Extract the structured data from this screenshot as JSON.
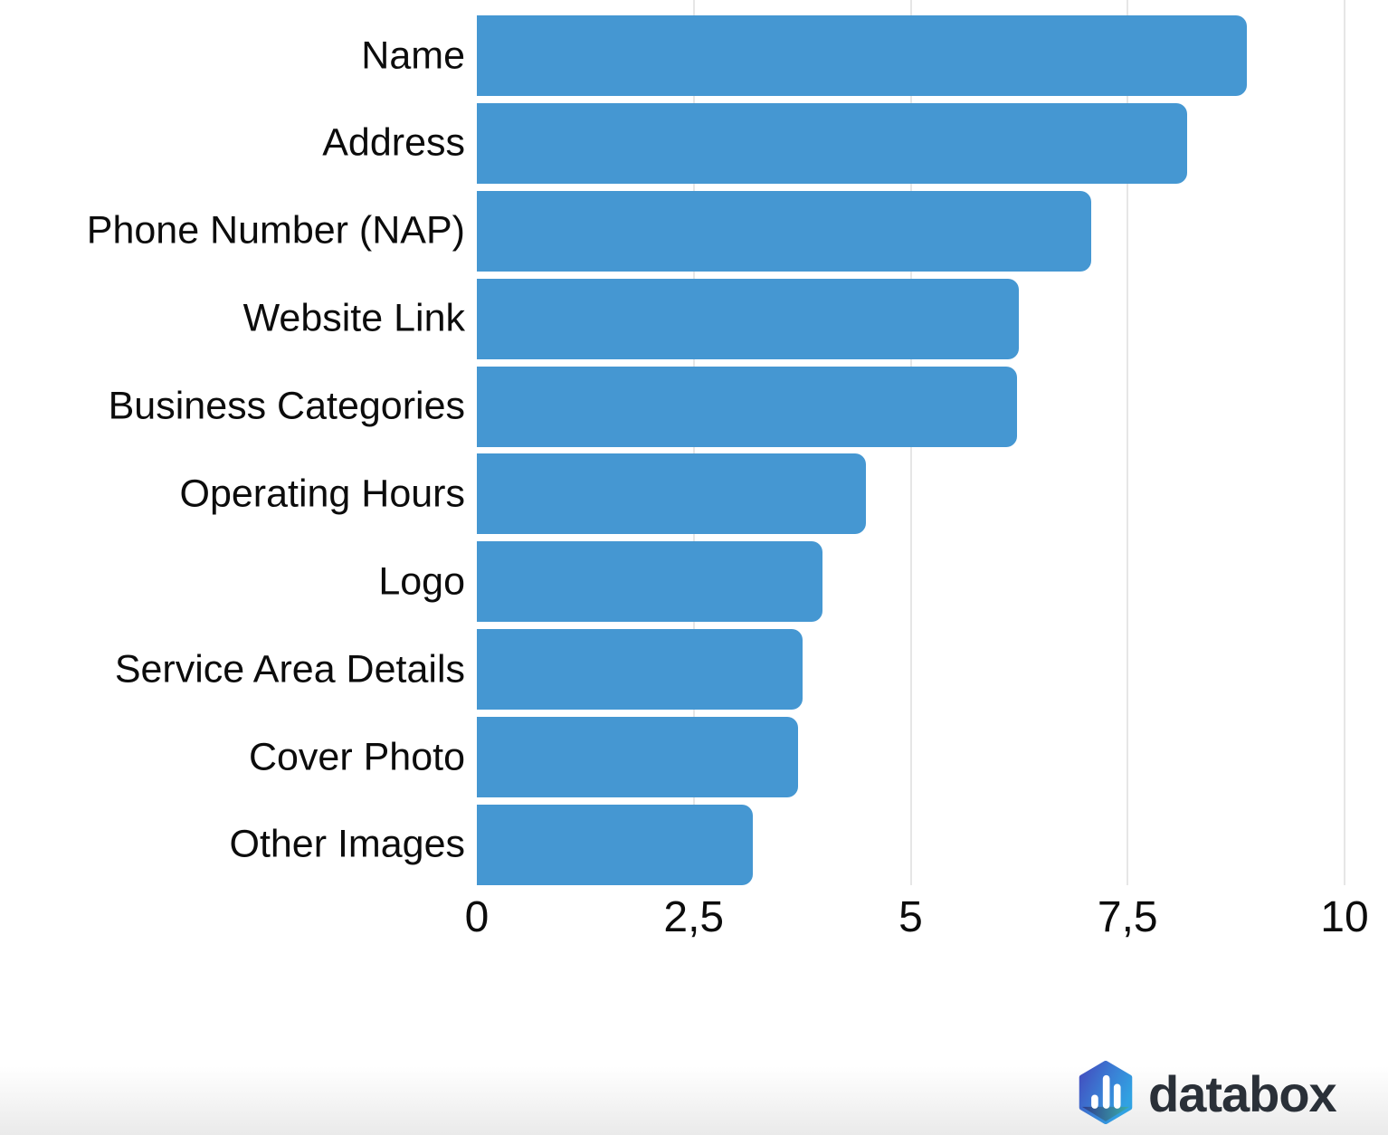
{
  "chart_data": {
    "type": "bar",
    "orientation": "horizontal",
    "title": "",
    "categories": [
      "Name",
      "Address",
      "Phone Number (NAP)",
      "Website Link",
      "Business Categories",
      "Operating Hours",
      "Logo",
      "Service Area Details",
      "Cover Photo",
      "Other Images"
    ],
    "values": [
      8.87,
      8.19,
      7.08,
      6.25,
      6.23,
      4.48,
      3.98,
      3.75,
      3.7,
      3.18
    ],
    "xlabel": "",
    "ylabel": "",
    "xlim": [
      0,
      10
    ],
    "x_ticks": [
      {
        "value": 0,
        "label": "0"
      },
      {
        "value": 2.5,
        "label": "2,5"
      },
      {
        "value": 5,
        "label": "5"
      },
      {
        "value": 7.5,
        "label": "7,5"
      },
      {
        "value": 10,
        "label": "10"
      }
    ],
    "grid": "vertical",
    "legend": "none",
    "bar_color": "#4597d2"
  },
  "colors": {
    "gridline": "#e6e6e6",
    "axis_text": "#0c0c0c",
    "label_text": "#0c0c0c",
    "wordmark": "#2a3038",
    "logo_gradient_start": "#434cbe",
    "logo_gradient_end": "#31a2e2",
    "logo_facet_left": "#2e3480",
    "logo_facet_right": "#3cb0a2"
  },
  "branding": {
    "logo_text": "databox",
    "logo_icon": "databox-hexagon-bars-icon"
  }
}
